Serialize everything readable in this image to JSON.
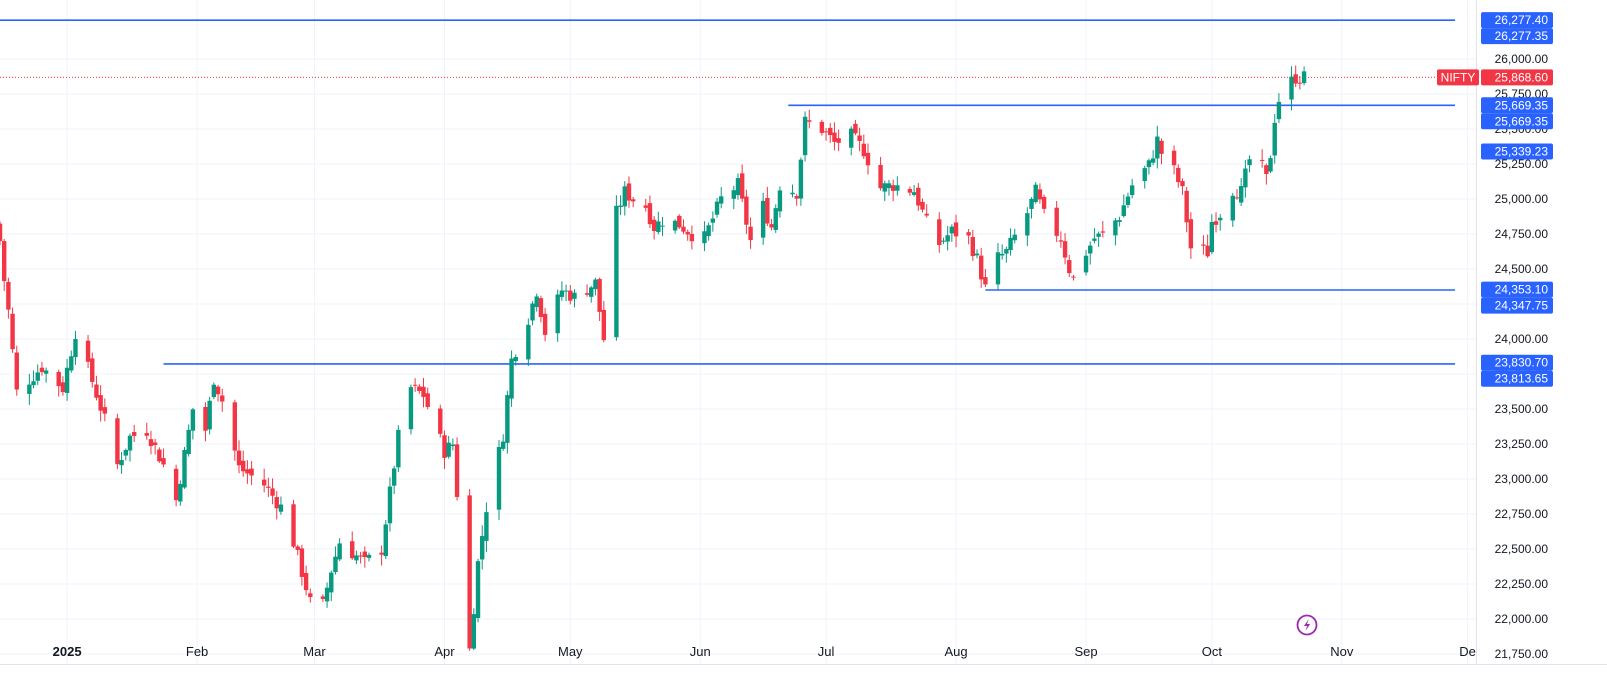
{
  "chart_data": {
    "type": "candlestick",
    "symbol": "NIFTY",
    "last_price": 25868.6,
    "last_price_label": "25,868.60",
    "y_axis": {
      "min": 21650,
      "max": 26400,
      "ticks": [
        21750,
        22000,
        22250,
        22500,
        22750,
        23000,
        23250,
        23500,
        23750,
        24000,
        24250,
        24500,
        24750,
        25000,
        25250,
        25500,
        25750,
        26000
      ],
      "tick_labels": [
        "21,750.00",
        "22,000.00",
        "22,250.00",
        "22,500.00",
        "22,750.00",
        "23,000.00",
        "23,250.00",
        "23,500.00",
        "23,750.00",
        "24,000.00",
        "24,250.00",
        "24,500.00",
        "24,750.00",
        "25,000.00",
        "25,250.00",
        "25,500.00",
        "25,750.00",
        "26,000.00"
      ]
    },
    "x_axis": {
      "start": "2024-12-16",
      "end": "2025-12-03",
      "labels": [
        {
          "date": "2025-01-01",
          "text": "2025",
          "bold": true
        },
        {
          "date": "2025-02-01",
          "text": "Feb"
        },
        {
          "date": "2025-03-01",
          "text": "Mar"
        },
        {
          "date": "2025-04-01",
          "text": "Apr"
        },
        {
          "date": "2025-05-01",
          "text": "May"
        },
        {
          "date": "2025-06-01",
          "text": "Jun"
        },
        {
          "date": "2025-07-01",
          "text": "Jul"
        },
        {
          "date": "2025-08-01",
          "text": "Aug"
        },
        {
          "date": "2025-09-01",
          "text": "Sep"
        },
        {
          "date": "2025-10-01",
          "text": "Oct"
        },
        {
          "date": "2025-11-01",
          "text": "Nov"
        },
        {
          "date": "2025-12-01",
          "text": "De"
        }
      ]
    },
    "horizontal_lines": [
      {
        "value": 26277.35,
        "start": "2024-12-16",
        "end": "2025-11-28"
      },
      {
        "value": 25669.35,
        "start": "2025-06-22",
        "end": "2025-11-28"
      },
      {
        "value": 24350,
        "start": "2025-08-08",
        "end": "2025-11-28"
      },
      {
        "value": 23822,
        "start": "2025-01-24",
        "end": "2025-11-28"
      }
    ],
    "price_labels": [
      {
        "value": 26277.4,
        "text": "26,277.40",
        "color": "#2962ff"
      },
      {
        "value": 26277.35,
        "text": "26,277.35",
        "color": "#2962ff"
      },
      {
        "value": 25669.35,
        "text": "25,669.35",
        "color": "#2962ff"
      },
      {
        "value": 25669.35,
        "text": "25,669.35",
        "color": "#2962ff"
      },
      {
        "value": 25339.23,
        "text": "25,339.23",
        "color": "#2962ff"
      },
      {
        "value": 24353.1,
        "text": "24,353.10",
        "color": "#2962ff"
      },
      {
        "value": 24347.75,
        "text": "24,347.75",
        "color": "#2962ff"
      },
      {
        "value": 23830.7,
        "text": "23,830.70",
        "color": "#2962ff"
      },
      {
        "value": 23813.65,
        "text": "23,813.65",
        "color": "#2962ff"
      }
    ],
    "colors": {
      "up": "#089981",
      "down": "#f23645",
      "line": "#2962ff",
      "grid": "#f0f3fa",
      "last_price": "#f23645",
      "replay_icon": "#9c27b0"
    },
    "anchors": [
      {
        "date": "2024-12-16",
        "close": 24700
      },
      {
        "date": "2024-12-17",
        "close": 24420
      },
      {
        "date": "2024-12-18",
        "close": 24200
      },
      {
        "date": "2024-12-20",
        "close": 23620
      },
      {
        "date": "2024-12-26",
        "close": 23800
      },
      {
        "date": "2024-12-31",
        "close": 23650
      },
      {
        "date": "2025-01-03",
        "close": 24050
      },
      {
        "date": "2025-01-07",
        "close": 23700
      },
      {
        "date": "2025-01-10",
        "close": 23420
      },
      {
        "date": "2025-01-13",
        "close": 23100
      },
      {
        "date": "2025-01-16",
        "close": 23300
      },
      {
        "date": "2025-01-20",
        "close": 23350
      },
      {
        "date": "2025-01-24",
        "close": 23100
      },
      {
        "date": "2025-01-27",
        "close": 22850
      },
      {
        "date": "2025-01-31",
        "close": 23500
      },
      {
        "date": "2025-02-03",
        "close": 23350
      },
      {
        "date": "2025-02-05",
        "close": 23720
      },
      {
        "date": "2025-02-07",
        "close": 23560
      },
      {
        "date": "2025-02-11",
        "close": 23080
      },
      {
        "date": "2025-02-17",
        "close": 22960
      },
      {
        "date": "2025-02-21",
        "close": 22800
      },
      {
        "date": "2025-02-24",
        "close": 22550
      },
      {
        "date": "2025-02-28",
        "close": 22120
      },
      {
        "date": "2025-03-03",
        "close": 22100
      },
      {
        "date": "2025-03-05",
        "close": 22350
      },
      {
        "date": "2025-03-07",
        "close": 22550
      },
      {
        "date": "2025-03-13",
        "close": 22400
      },
      {
        "date": "2025-03-17",
        "close": 22500
      },
      {
        "date": "2025-03-21",
        "close": 23300
      },
      {
        "date": "2025-03-24",
        "close": 23650
      },
      {
        "date": "2025-03-27",
        "close": 23600
      },
      {
        "date": "2025-04-01",
        "close": 23200
      },
      {
        "date": "2025-04-03",
        "close": 23250
      },
      {
        "date": "2025-04-04",
        "close": 22900
      },
      {
        "date": "2025-04-07",
        "close": 21780
      },
      {
        "date": "2025-04-09",
        "close": 22400
      },
      {
        "date": "2025-04-11",
        "close": 22800
      },
      {
        "date": "2025-04-15",
        "close": 23320
      },
      {
        "date": "2025-04-17",
        "close": 23850
      },
      {
        "date": "2025-04-21",
        "close": 24150
      },
      {
        "date": "2025-04-23",
        "close": 24350
      },
      {
        "date": "2025-04-25",
        "close": 24050
      },
      {
        "date": "2025-04-29",
        "close": 24350
      },
      {
        "date": "2025-05-02",
        "close": 24300
      },
      {
        "date": "2025-05-07",
        "close": 24400
      },
      {
        "date": "2025-05-09",
        "close": 24000
      },
      {
        "date": "2025-05-12",
        "close": 24900
      },
      {
        "date": "2025-05-14",
        "close": 25050
      },
      {
        "date": "2025-05-16",
        "close": 25000
      },
      {
        "date": "2025-05-19",
        "close": 24950
      },
      {
        "date": "2025-05-21",
        "close": 24800
      },
      {
        "date": "2025-05-23",
        "close": 24850
      },
      {
        "date": "2025-05-27",
        "close": 24820
      },
      {
        "date": "2025-05-30",
        "close": 24750
      },
      {
        "date": "2025-06-02",
        "close": 24720
      },
      {
        "date": "2025-06-06",
        "close": 25000
      },
      {
        "date": "2025-06-10",
        "close": 25100
      },
      {
        "date": "2025-06-13",
        "close": 24700
      },
      {
        "date": "2025-06-16",
        "close": 24950
      },
      {
        "date": "2025-06-18",
        "close": 24800
      },
      {
        "date": "2025-06-20",
        "close": 25100
      },
      {
        "date": "2025-06-24",
        "close": 25050
      },
      {
        "date": "2025-06-26",
        "close": 25550
      },
      {
        "date": "2025-06-30",
        "close": 25500
      },
      {
        "date": "2025-07-03",
        "close": 25400
      },
      {
        "date": "2025-07-07",
        "close": 25450
      },
      {
        "date": "2025-07-10",
        "close": 25350
      },
      {
        "date": "2025-07-14",
        "close": 25080
      },
      {
        "date": "2025-07-17",
        "close": 25100
      },
      {
        "date": "2025-07-22",
        "close": 25060
      },
      {
        "date": "2025-07-25",
        "close": 24830
      },
      {
        "date": "2025-07-28",
        "close": 24680
      },
      {
        "date": "2025-07-31",
        "close": 24770
      },
      {
        "date": "2025-08-04",
        "close": 24720
      },
      {
        "date": "2025-08-06",
        "close": 24570
      },
      {
        "date": "2025-08-08",
        "close": 24360
      },
      {
        "date": "2025-08-11",
        "close": 24580
      },
      {
        "date": "2025-08-13",
        "close": 24620
      },
      {
        "date": "2025-08-18",
        "close": 24900
      },
      {
        "date": "2025-08-20",
        "close": 25050
      },
      {
        "date": "2025-08-22",
        "close": 24880
      },
      {
        "date": "2025-08-26",
        "close": 24720
      },
      {
        "date": "2025-08-28",
        "close": 24500
      },
      {
        "date": "2025-08-29",
        "close": 24430
      },
      {
        "date": "2025-09-01",
        "close": 24620
      },
      {
        "date": "2025-09-03",
        "close": 24720
      },
      {
        "date": "2025-09-05",
        "close": 24740
      },
      {
        "date": "2025-09-09",
        "close": 24880
      },
      {
        "date": "2025-09-12",
        "close": 25100
      },
      {
        "date": "2025-09-16",
        "close": 25240
      },
      {
        "date": "2025-09-18",
        "close": 25420
      },
      {
        "date": "2025-09-19",
        "close": 25330
      },
      {
        "date": "2025-09-22",
        "close": 25200
      },
      {
        "date": "2025-09-24",
        "close": 25050
      },
      {
        "date": "2025-09-26",
        "close": 24650
      },
      {
        "date": "2025-09-30",
        "close": 24620
      },
      {
        "date": "2025-10-01",
        "close": 24840
      },
      {
        "date": "2025-10-03",
        "close": 24900
      },
      {
        "date": "2025-10-06",
        "close": 25070
      },
      {
        "date": "2025-10-08",
        "close": 25050
      },
      {
        "date": "2025-10-10",
        "close": 25280
      },
      {
        "date": "2025-10-13",
        "close": 25220
      },
      {
        "date": "2025-10-14",
        "close": 25140
      },
      {
        "date": "2025-10-15",
        "close": 25320
      },
      {
        "date": "2025-10-16",
        "close": 25580
      },
      {
        "date": "2025-10-17",
        "close": 25710
      },
      {
        "date": "2025-10-20",
        "close": 25840
      },
      {
        "date": "2025-10-21",
        "close": 25870
      },
      {
        "date": "2025-10-23",
        "close": 25868.6
      }
    ]
  }
}
